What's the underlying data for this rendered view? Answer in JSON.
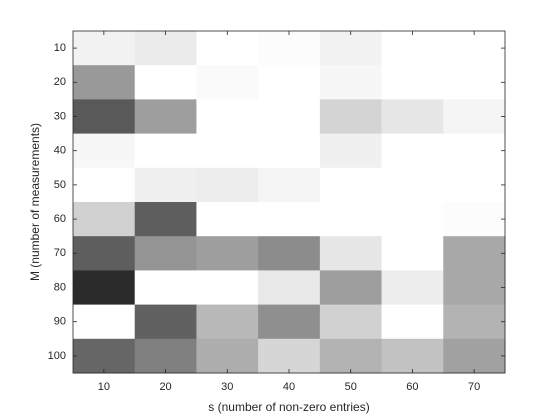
{
  "chart_data": {
    "type": "heatmap",
    "x_label": "s (number of non-zero entries)",
    "y_label": "M (number of measurements)",
    "categories": [
      10,
      20,
      30,
      40,
      50,
      60,
      70
    ],
    "y_categories": [
      10,
      20,
      30,
      40,
      50,
      60,
      70,
      80,
      90,
      100
    ],
    "colormap": "gray",
    "clim": [
      0,
      1
    ],
    "values": [
      [
        0.95,
        0.92,
        1,
        0.99,
        0.95,
        1,
        1
      ],
      [
        0.6,
        1,
        0.98,
        1,
        0.97,
        1,
        1
      ],
      [
        0.35,
        0.62,
        1,
        1,
        0.83,
        0.9,
        0.96
      ],
      [
        0.97,
        1,
        1,
        1,
        0.94,
        1,
        1
      ],
      [
        1,
        0.94,
        0.93,
        0.96,
        1,
        1,
        1
      ],
      [
        0.82,
        0.37,
        1,
        1,
        1,
        1,
        0.99
      ],
      [
        0.37,
        0.58,
        0.62,
        0.55,
        0.9,
        1,
        0.66
      ],
      [
        0.17,
        1,
        1,
        0.91,
        0.62,
        0.93,
        0.66
      ],
      [
        1,
        0.38,
        0.72,
        0.56,
        0.82,
        1,
        0.7
      ],
      [
        0.4,
        0.5,
        0.68,
        0.84,
        0.7,
        0.76,
        0.63
      ]
    ]
  }
}
